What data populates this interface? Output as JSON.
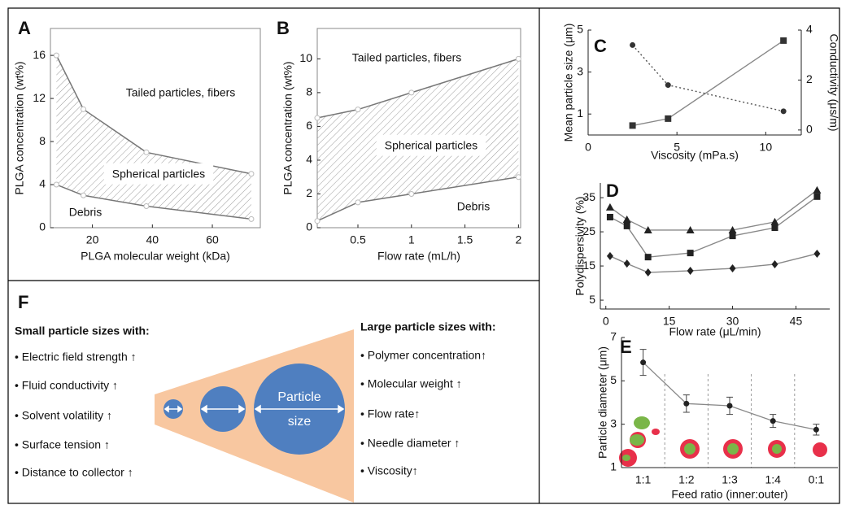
{
  "chart_data": [
    {
      "type": "band",
      "panel": "A",
      "x": [
        8,
        17,
        38,
        73
      ],
      "series": [
        {
          "color": "#777777",
          "values": [
            16,
            11,
            7,
            5
          ]
        },
        {
          "color": "#777777",
          "values": [
            4,
            3,
            2,
            0.8
          ]
        }
      ],
      "xlim": [
        6,
        76
      ],
      "ylim": [
        0,
        18.5
      ],
      "xticks": [
        20,
        40,
        60
      ],
      "yticks": [
        0,
        4,
        8,
        12,
        16
      ],
      "xlabel": "PLGA molecular weight (kDa)",
      "ylabel": "PLGA concentration (wt%)",
      "annotations": [
        "Tailed particles, fibers",
        "Spherical particles",
        "Debris"
      ]
    },
    {
      "type": "band",
      "panel": "B",
      "x": [
        0.12,
        0.5,
        1,
        2
      ],
      "series": [
        {
          "color": "#777777",
          "values": [
            6.5,
            7,
            8,
            10
          ]
        },
        {
          "color": "#777777",
          "values": [
            0.4,
            1.5,
            2,
            3
          ]
        }
      ],
      "xlim": [
        0.12,
        2.02
      ],
      "ylim": [
        0,
        11.8
      ],
      "xticks": [
        0.5,
        1,
        1.5,
        2
      ],
      "yticks": [
        0,
        2,
        4,
        6,
        8,
        10
      ],
      "xlabel": "Flow rate (mL/h)",
      "ylabel": "PLGA concentration (wt%)",
      "annotations": [
        "Tailed particles, fibers",
        "Spherical particles",
        "Debris"
      ]
    },
    {
      "type": "line",
      "panel": "C",
      "x": [
        2.5,
        4.5,
        11
      ],
      "series": [
        {
          "color": "#333333",
          "marker": "square",
          "values": [
            0.45,
            0.78,
            4.5
          ]
        },
        {
          "color": "#333333",
          "marker": "circle",
          "linestyle": "dotted",
          "axis": "y2",
          "values": [
            3.4,
            1.8,
            0.75
          ]
        }
      ],
      "xlim": [
        0,
        12
      ],
      "ylim": [
        0,
        5
      ],
      "y2lim": [
        -0.2,
        4
      ],
      "xticks": [
        0,
        5,
        10
      ],
      "yticks": [
        1,
        3,
        5
      ],
      "y2ticks": [
        0,
        2,
        4
      ],
      "xlabel": "Viscosity (mPa.s)",
      "ylabel": "Mean particle size (μm)",
      "y2label": "Conductivity (μs/m)"
    },
    {
      "type": "line",
      "panel": "D",
      "x": [
        1,
        5,
        10,
        20,
        30,
        40,
        50
      ],
      "series": [
        {
          "color": "#222222",
          "marker": "triangle",
          "values": [
            32.2,
            28.6,
            25.5,
            25.5,
            25.5,
            27.9,
            37.2
          ]
        },
        {
          "color": "#222222",
          "marker": "square",
          "values": [
            29.3,
            26.7,
            17.6,
            18.8,
            23.8,
            26.2,
            35.3
          ]
        },
        {
          "color": "#222222",
          "marker": "diamond",
          "values": [
            17.9,
            15.7,
            13.1,
            13.6,
            14.3,
            15.5,
            18.6
          ]
        }
      ],
      "xlim": [
        -1.3,
        53
      ],
      "ylim": [
        2.4,
        39.3
      ],
      "xticks": [
        0,
        15,
        30,
        45
      ],
      "yticks": [
        5,
        15,
        25,
        35
      ],
      "xlabel": "Flow rate (μL/min)",
      "ylabel": "Polydispersivity (%)"
    },
    {
      "type": "errorbar",
      "panel": "E",
      "categories": [
        "1:1",
        "1:2",
        "1:3",
        "1:4",
        "0:1"
      ],
      "values": [
        5.85,
        3.95,
        3.85,
        3.15,
        2.75
      ],
      "errors": [
        0.6,
        0.4,
        0.4,
        0.3,
        0.25
      ],
      "color": "#222222",
      "ylim": [
        1,
        7
      ],
      "yticks": [
        1,
        3,
        5,
        7
      ],
      "xlabel": "Feed ratio (inner:outer)",
      "ylabel": "Particle diameter (μm)"
    }
  ],
  "panel_f": {
    "panel": "F",
    "left": {
      "heading": "Small particle sizes with:",
      "items": [
        "• Electric field strength ↑",
        "• Fluid conductivity ↑",
        "• Solvent volatility ↑",
        "• Surface tension ↑",
        "• Distance to collector ↑"
      ]
    },
    "right": {
      "heading": "Large particle sizes with:",
      "items": [
        "• Polymer concentration↑",
        "• Molecular weight ↑",
        "• Flow rate↑",
        "• Needle diameter ↑",
        "• Viscosity↑"
      ]
    },
    "center_label": [
      "Particle",
      "size"
    ]
  }
}
